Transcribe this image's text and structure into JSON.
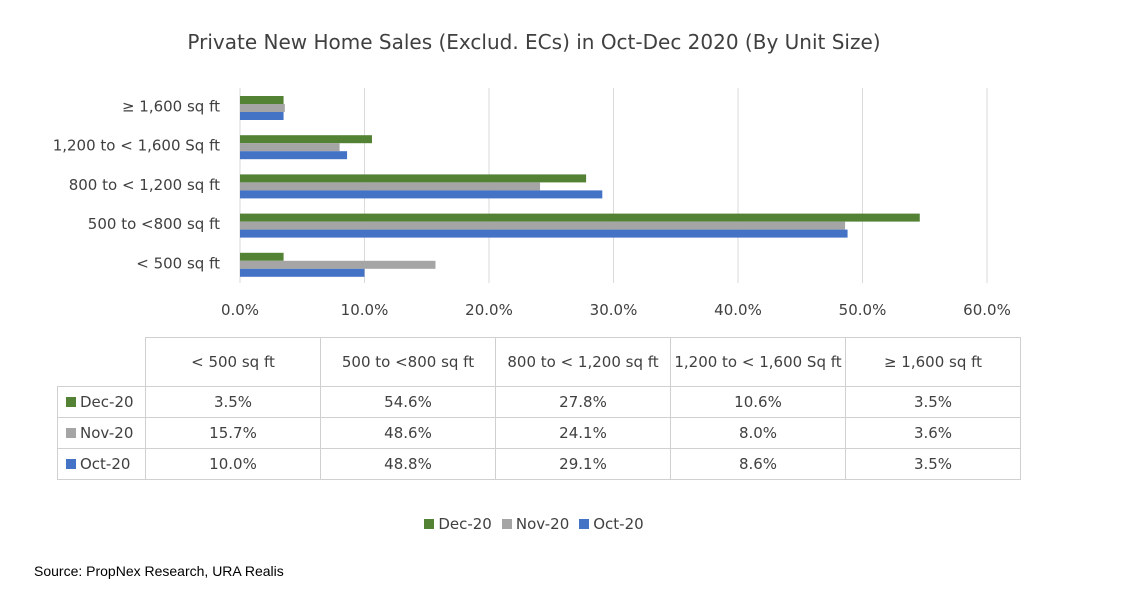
{
  "chart_data": {
    "type": "bar",
    "orientation": "horizontal",
    "title": "Private New Home Sales (Exclud. ECs) in Oct-Dec 2020 (By Unit Size)",
    "categories": [
      "< 500 sq ft",
      "500 to <800 sq ft",
      "800 to < 1,200 sq ft",
      "1,200 to < 1,600 Sq ft",
      "≥ 1,600 sq ft"
    ],
    "series": [
      {
        "name": "Dec-20",
        "color": "#548235",
        "values": [
          3.5,
          54.6,
          27.8,
          10.6,
          3.5
        ],
        "labels": [
          "3.5%",
          "54.6%",
          "27.8%",
          "10.6%",
          "3.5%"
        ]
      },
      {
        "name": "Nov-20",
        "color": "#a5a5a5",
        "values": [
          15.7,
          48.6,
          24.1,
          8.0,
          3.6
        ],
        "labels": [
          "15.7%",
          "48.6%",
          "24.1%",
          "8.0%",
          "3.6%"
        ]
      },
      {
        "name": "Oct-20",
        "color": "#4472c4",
        "values": [
          10.0,
          48.8,
          29.1,
          8.6,
          3.5
        ],
        "labels": [
          "10.0%",
          "48.8%",
          "29.1%",
          "8.6%",
          "3.5%"
        ]
      }
    ],
    "xlim": [
      0,
      60
    ],
    "xticks": [
      "0.0%",
      "10.0%",
      "20.0%",
      "30.0%",
      "40.0%",
      "50.0%",
      "60.0%"
    ],
    "grid": true,
    "legend_position": "bottom",
    "data_table": true
  },
  "source": "Source: PropNex Research, URA Realis"
}
